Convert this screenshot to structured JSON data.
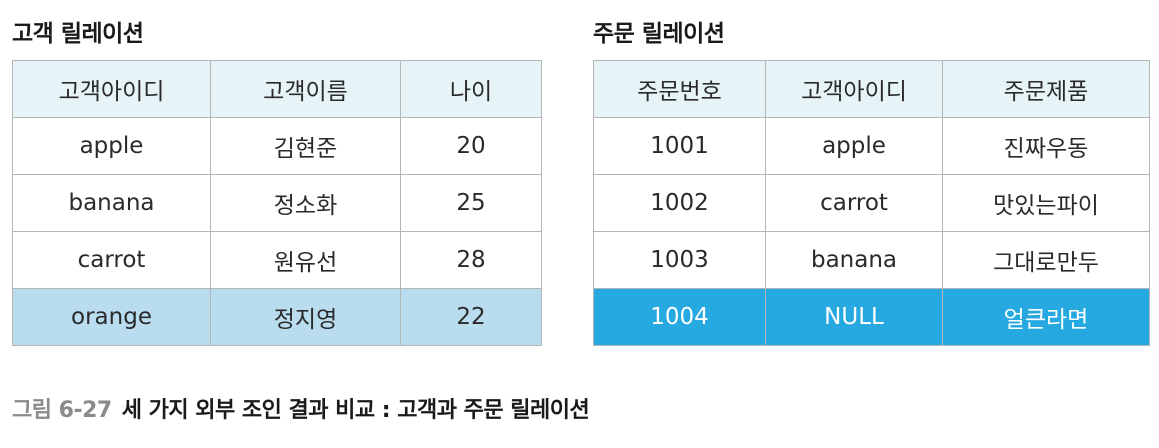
{
  "customer": {
    "title": "고객 릴레이션",
    "columns": [
      "고객아이디",
      "고객이름",
      "나이"
    ],
    "rows": [
      [
        "apple",
        "김현준",
        "20"
      ],
      [
        "banana",
        "정소화",
        "25"
      ],
      [
        "carrot",
        "원유선",
        "28"
      ],
      [
        "orange",
        "정지영",
        "22"
      ]
    ]
  },
  "order": {
    "title": "주문 릴레이션",
    "columns": [
      "주문번호",
      "고객아이디",
      "주문제품"
    ],
    "rows": [
      [
        "1001",
        "apple",
        "진짜우동"
      ],
      [
        "1002",
        "carrot",
        "맛있는파이"
      ],
      [
        "1003",
        "banana",
        "그대로만두"
      ],
      [
        "1004",
        "NULL",
        "얼큰라면"
      ]
    ]
  },
  "caption": {
    "label": "그림 6-27",
    "text": "세 가지 외부 조인 결과 비교 : 고객과 주문 릴레이션"
  },
  "colors": {
    "header_bg": "#e6f4f7",
    "highlight_light": "#b9dcef",
    "highlight_strong": "#26a9e0",
    "border": "#b5b5b5"
  }
}
